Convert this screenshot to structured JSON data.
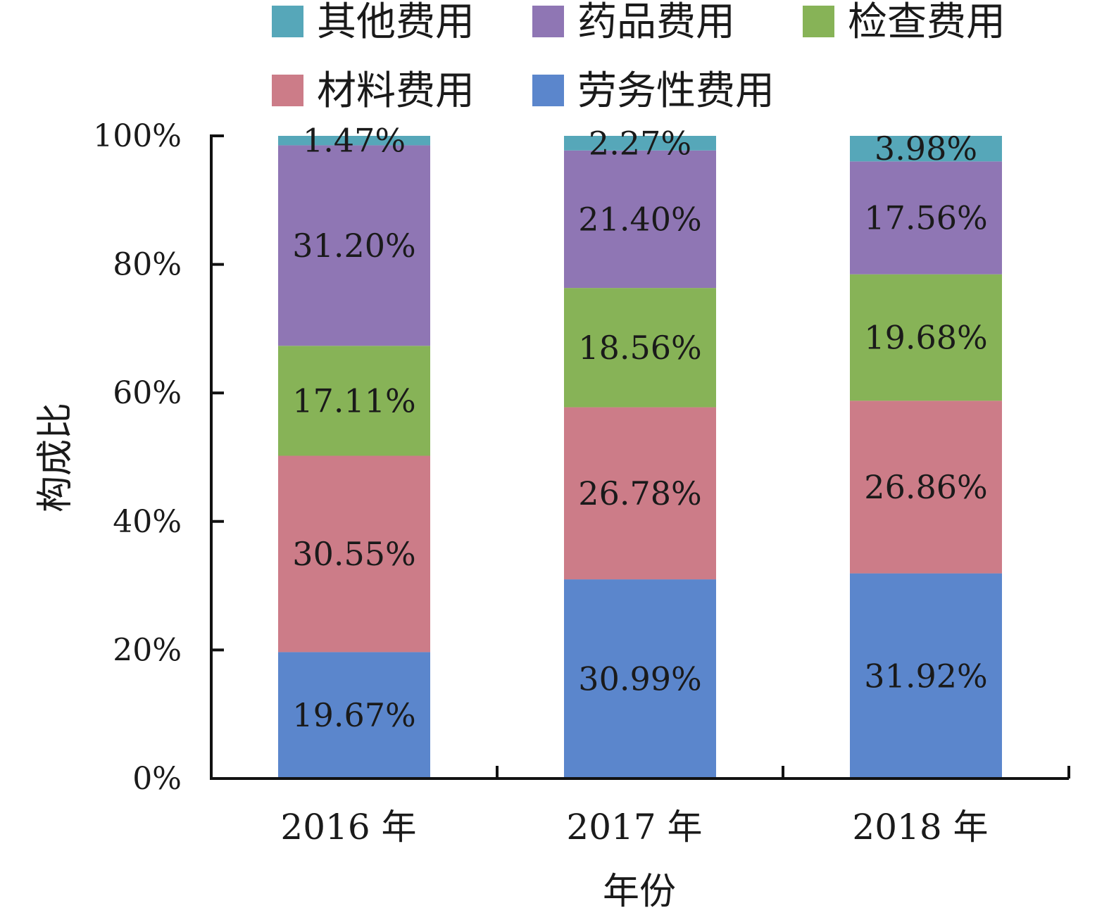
{
  "chart_data": {
    "type": "bar",
    "stacked": true,
    "categories": [
      "2016 年",
      "2017 年",
      "2018 年"
    ],
    "series": [
      {
        "name": "劳务性费用",
        "color": "#5b86cc",
        "values": [
          19.67,
          30.99,
          31.92
        ],
        "labels": [
          "19.67%",
          "30.99%",
          "31.92%"
        ]
      },
      {
        "name": "材料费用",
        "color": "#cc7c88",
        "values": [
          30.55,
          26.78,
          26.86
        ],
        "labels": [
          "30.55%",
          "26.78%",
          "26.86%"
        ]
      },
      {
        "name": "检查费用",
        "color": "#87b357",
        "values": [
          17.11,
          18.56,
          19.68
        ],
        "labels": [
          "17.11%",
          "18.56%",
          "19.68%"
        ]
      },
      {
        "name": "药品费用",
        "color": "#8f76b4",
        "values": [
          31.2,
          21.4,
          17.56
        ],
        "labels": [
          "31.20%",
          "21.40%",
          "17.56%"
        ]
      },
      {
        "name": "其他费用",
        "color": "#56a7b9",
        "values": [
          1.47,
          2.27,
          3.98
        ],
        "labels": [
          "1.47%",
          "2.27%",
          "3.98%"
        ]
      }
    ],
    "legend_order": [
      "其他费用",
      "药品费用",
      "检查费用",
      "材料费用",
      "劳务性费用"
    ],
    "legend_placement": "top",
    "xlabel": "年份",
    "ylabel": "构成比",
    "ylim": [
      0,
      100
    ],
    "yticks": [
      0,
      20,
      40,
      60,
      80,
      100
    ],
    "ytick_labels": [
      "0%",
      "20%",
      "40%",
      "60%",
      "80%",
      "100%"
    ],
    "grid": false
  }
}
